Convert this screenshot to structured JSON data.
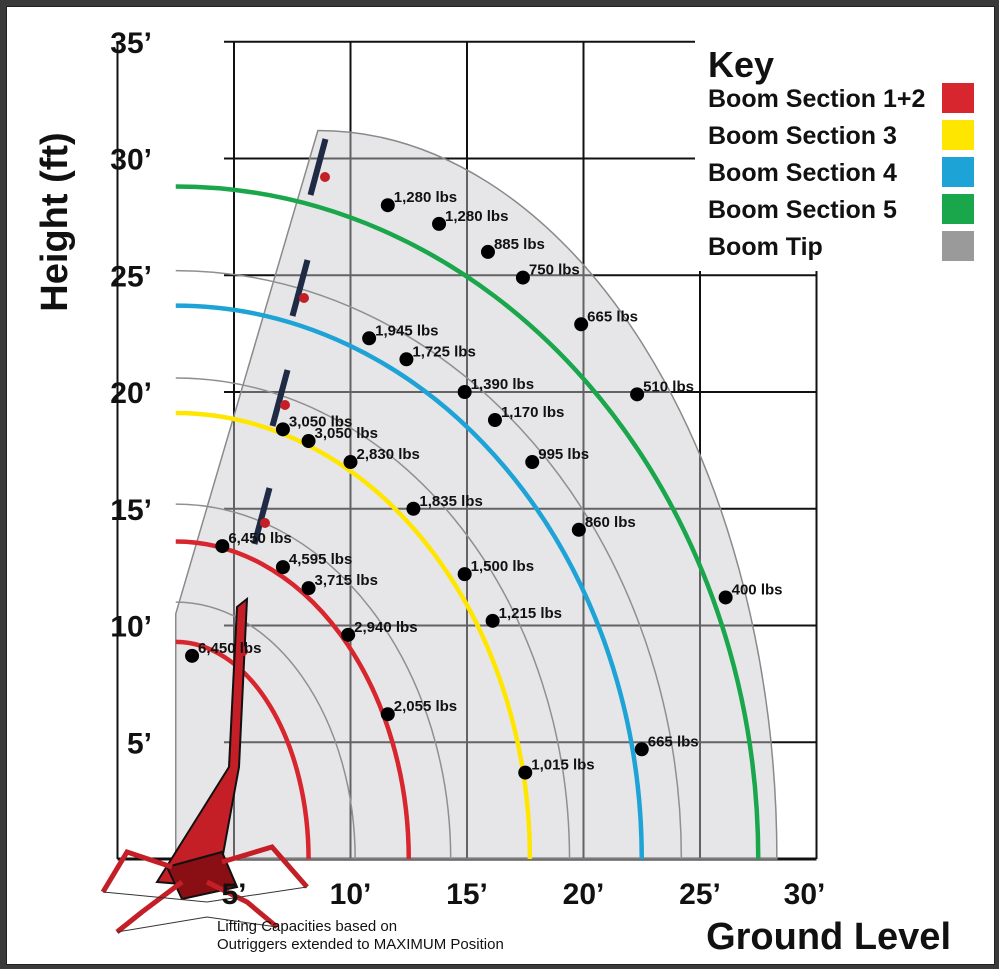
{
  "chart_data": {
    "type": "scatter",
    "title": "",
    "xlabel": "Ground Level",
    "ylabel": "Height (ft)",
    "xlim": [
      0,
      30
    ],
    "ylim": [
      0,
      35
    ],
    "x_ticks": [
      "5’",
      "10’",
      "15’",
      "20’",
      "25’",
      "30’"
    ],
    "y_ticks": [
      "5’",
      "10’",
      "15’",
      "20’",
      "25’",
      "30’",
      "35’"
    ],
    "grid": true,
    "legend_position": "top-right",
    "note_line1": "Lifting Capacities based on",
    "note_line2": "Outriggers extended to MAXIMUM Position",
    "key": {
      "title": "Key",
      "items": [
        {
          "label": "Boom Section 1+2",
          "color": "#d7262e"
        },
        {
          "label": "Boom Section 3",
          "color": "#ffe600"
        },
        {
          "label": "Boom Section 4",
          "color": "#1ea3d6"
        },
        {
          "label": "Boom Section 5",
          "color": "#1aa64b"
        },
        {
          "label": "Boom Tip",
          "color": "#9a9a9a"
        }
      ]
    },
    "reach_arcs": [
      {
        "name": "Boom Section 1+2",
        "color": "#d7262e",
        "x_reach": 8.2,
        "y_top": 9.3
      },
      {
        "name": "Boom Section 1+2",
        "color": "#d7262e",
        "x_reach": 12.5,
        "y_top": 13.6
      },
      {
        "name": "Boom Section 3",
        "color": "#ffe600",
        "x_reach": 17.7,
        "y_top": 19.1
      },
      {
        "name": "Boom Section 4",
        "color": "#1ea3d6",
        "x_reach": 22.5,
        "y_top": 23.7
      },
      {
        "name": "Boom Section 5",
        "color": "#1aa64b",
        "x_reach": 27.5,
        "y_top": 28.8
      }
    ],
    "points": [
      {
        "x": 3.2,
        "y": 8.7,
        "label": "6,450 lbs"
      },
      {
        "x": 4.5,
        "y": 13.4,
        "label": "6,450 lbs"
      },
      {
        "x": 7.1,
        "y": 12.5,
        "label": "4,595 lbs"
      },
      {
        "x": 8.2,
        "y": 11.6,
        "label": "3,715 lbs"
      },
      {
        "x": 9.9,
        "y": 9.6,
        "label": "2,940 lbs"
      },
      {
        "x": 11.6,
        "y": 6.2,
        "label": "2,055 lbs"
      },
      {
        "x": 7.1,
        "y": 18.4,
        "label": "3,050 lbs"
      },
      {
        "x": 8.2,
        "y": 17.9,
        "label": "3,050 lbs"
      },
      {
        "x": 10.0,
        "y": 17.0,
        "label": "2,830 lbs"
      },
      {
        "x": 12.7,
        "y": 15.0,
        "label": "1,835 lbs"
      },
      {
        "x": 14.9,
        "y": 12.2,
        "label": "1,500 lbs"
      },
      {
        "x": 16.1,
        "y": 10.2,
        "label": "1,215 lbs"
      },
      {
        "x": 17.5,
        "y": 3.7,
        "label": "1,015 lbs"
      },
      {
        "x": 10.8,
        "y": 22.3,
        "label": "1,945 lbs"
      },
      {
        "x": 12.4,
        "y": 21.4,
        "label": "1,725 lbs"
      },
      {
        "x": 14.9,
        "y": 20.0,
        "label": "1,390 lbs"
      },
      {
        "x": 16.2,
        "y": 18.8,
        "label": "1,170 lbs"
      },
      {
        "x": 17.8,
        "y": 17.0,
        "label": "995 lbs"
      },
      {
        "x": 19.8,
        "y": 14.1,
        "label": "860 lbs"
      },
      {
        "x": 22.5,
        "y": 4.7,
        "label": "665 lbs"
      },
      {
        "x": 11.6,
        "y": 28.0,
        "label": "1,280 lbs"
      },
      {
        "x": 13.8,
        "y": 27.2,
        "label": "1,280 lbs"
      },
      {
        "x": 15.9,
        "y": 26.0,
        "label": "885 lbs"
      },
      {
        "x": 17.4,
        "y": 24.9,
        "label": "750 lbs"
      },
      {
        "x": 19.9,
        "y": 22.9,
        "label": "665 lbs"
      },
      {
        "x": 22.3,
        "y": 19.9,
        "label": "510 lbs"
      },
      {
        "x": 26.1,
        "y": 11.2,
        "label": "400 lbs"
      }
    ]
  }
}
